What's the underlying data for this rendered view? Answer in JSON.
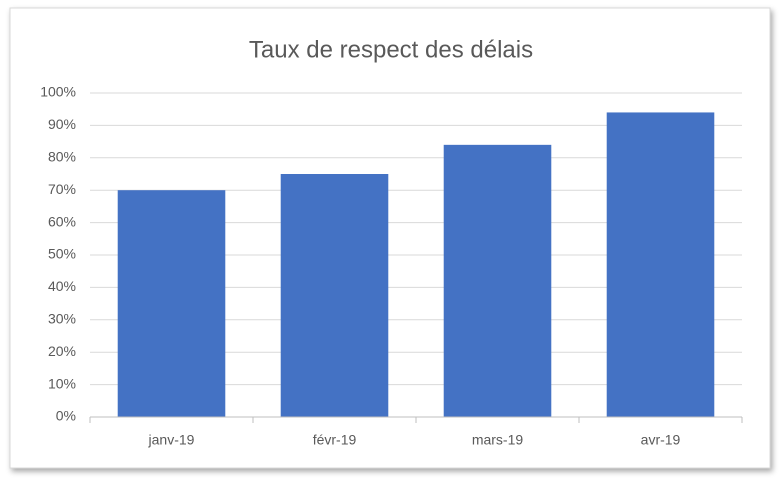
{
  "chart_data": {
    "type": "bar",
    "title": "Taux de respect des délais",
    "categories": [
      "janv-19",
      "févr-19",
      "mars-19",
      "avr-19"
    ],
    "values": [
      70,
      75,
      84,
      94
    ],
    "color": "#4472c4",
    "ylim": [
      0,
      100
    ],
    "yticks": [
      {
        "value": 0,
        "label": "0%"
      },
      {
        "value": 10,
        "label": "10%"
      },
      {
        "value": 20,
        "label": "20%"
      },
      {
        "value": 30,
        "label": "30%"
      },
      {
        "value": 40,
        "label": "40%"
      },
      {
        "value": 50,
        "label": "50%"
      },
      {
        "value": 60,
        "label": "60%"
      },
      {
        "value": 70,
        "label": "70%"
      },
      {
        "value": 80,
        "label": "80%"
      },
      {
        "value": 90,
        "label": "90%"
      },
      {
        "value": 100,
        "label": "100%"
      }
    ],
    "grid": true
  }
}
